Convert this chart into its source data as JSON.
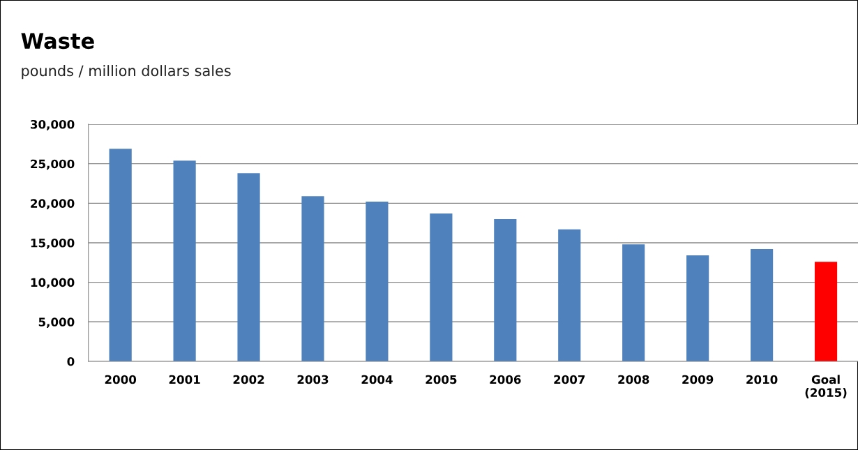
{
  "chart_data": {
    "type": "bar",
    "title": "Waste",
    "subtitle": "pounds / million dollars sales",
    "categories": [
      "2000",
      "2001",
      "2002",
      "2003",
      "2004",
      "2005",
      "2006",
      "2007",
      "2008",
      "2009",
      "2010",
      "Goal\n(2015)"
    ],
    "values": [
      26900,
      25400,
      23800,
      20900,
      20200,
      18700,
      18000,
      16700,
      14800,
      13400,
      14200,
      12600
    ],
    "colors": [
      "#4f81bd",
      "#4f81bd",
      "#4f81bd",
      "#4f81bd",
      "#4f81bd",
      "#4f81bd",
      "#4f81bd",
      "#4f81bd",
      "#4f81bd",
      "#4f81bd",
      "#4f81bd",
      "#ff0000"
    ],
    "ylim": [
      0,
      30000
    ],
    "yticks": [
      {
        "value": 0,
        "label": "0"
      },
      {
        "value": 5000,
        "label": "5,000"
      },
      {
        "value": 10000,
        "label": "10,000"
      },
      {
        "value": 15000,
        "label": "15,000"
      },
      {
        "value": 20000,
        "label": "20,000"
      },
      {
        "value": 25000,
        "label": "25,000"
      },
      {
        "value": 30000,
        "label": "30,000"
      }
    ],
    "grid": "y",
    "legend": false
  }
}
